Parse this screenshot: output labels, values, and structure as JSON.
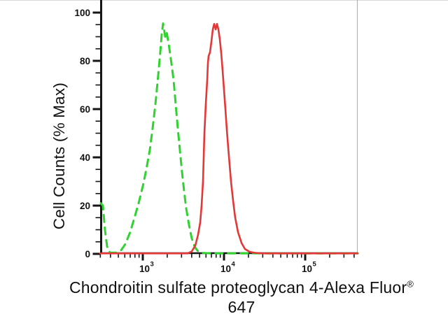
{
  "figure": {
    "kind": "flow-cytometry-histogram",
    "background_color": "#ffffff"
  },
  "chart": {
    "y_axis": {
      "label": "Cell Counts (% Max)",
      "ticks": [
        0,
        20,
        40,
        60,
        80,
        100
      ],
      "minor_step": 5,
      "range": [
        0,
        100
      ]
    },
    "x_axis": {
      "scale": "log10",
      "base_text": "10",
      "tick_exponents": [
        3,
        4,
        5
      ],
      "log_range": [
        2.474,
        5.647
      ]
    }
  },
  "caption": {
    "line1": "Chondroitin sulfate proteoglycan 4-Alexa Fluor",
    "registered_mark": "®",
    "line2": "647"
  },
  "colors": {
    "green_curve": "#2FD32F",
    "red_curve": "#E43737",
    "axis": "#151515",
    "faint_spine": "#b3b3b3"
  },
  "chart_data": {
    "type": "line",
    "title": "",
    "xlabel": "Chondroitin sulfate proteoglycan 4-Alexa Fluor® 647",
    "ylabel": "Cell Counts (% Max)",
    "x_scale": "log10",
    "xlim_log10": [
      2.474,
      5.647
    ],
    "ylim": [
      0,
      100
    ],
    "grid": false,
    "legend": "none",
    "series": [
      {
        "name": "green-dashed-control",
        "style": "dashed",
        "color": "#2FD32F",
        "peak_log10x": 3.25,
        "peak_pct": 95.5,
        "points_log10x_pct": [
          [
            2.483,
            21
          ],
          [
            2.509,
            20
          ],
          [
            2.534,
            10
          ],
          [
            2.56,
            3
          ],
          [
            2.595,
            0.5
          ],
          [
            2.672,
            0.5
          ],
          [
            2.733,
            1.5
          ],
          [
            2.784,
            4
          ],
          [
            2.845,
            9
          ],
          [
            2.897,
            15
          ],
          [
            2.948,
            21
          ],
          [
            3.0,
            28
          ],
          [
            3.043,
            35
          ],
          [
            3.086,
            43
          ],
          [
            3.121,
            52
          ],
          [
            3.155,
            62
          ],
          [
            3.19,
            74
          ],
          [
            3.216,
            84
          ],
          [
            3.233,
            91
          ],
          [
            3.25,
            95.5
          ],
          [
            3.276,
            90
          ],
          [
            3.293,
            92
          ],
          [
            3.319,
            87
          ],
          [
            3.353,
            79
          ],
          [
            3.379,
            72
          ],
          [
            3.405,
            62
          ],
          [
            3.431,
            52
          ],
          [
            3.457,
            43
          ],
          [
            3.483,
            34
          ],
          [
            3.509,
            26
          ],
          [
            3.534,
            19
          ],
          [
            3.569,
            12
          ],
          [
            3.603,
            6.5
          ],
          [
            3.638,
            3
          ],
          [
            3.681,
            1
          ],
          [
            3.741,
            0.4
          ],
          [
            3.828,
            0.2
          ],
          [
            4.345,
            0.2
          ],
          [
            4.862,
            0.2
          ],
          [
            5.647,
            0.2
          ]
        ]
      },
      {
        "name": "red-solid-sample",
        "style": "solid",
        "color": "#E43737",
        "peak_log10x": 3.879,
        "peak_pct": 95.3,
        "points_log10x_pct": [
          [
            2.474,
            0.2
          ],
          [
            3.552,
            0.2
          ],
          [
            3.603,
            1
          ],
          [
            3.647,
            3.5
          ],
          [
            3.681,
            8
          ],
          [
            3.707,
            13
          ],
          [
            3.724,
            20
          ],
          [
            3.741,
            30
          ],
          [
            3.75,
            40
          ],
          [
            3.759,
            50
          ],
          [
            3.776,
            62
          ],
          [
            3.793,
            72
          ],
          [
            3.802,
            79
          ],
          [
            3.81,
            82
          ],
          [
            3.828,
            83.5
          ],
          [
            3.845,
            88
          ],
          [
            3.862,
            93
          ],
          [
            3.879,
            95.3
          ],
          [
            3.897,
            93
          ],
          [
            3.914,
            95.3
          ],
          [
            3.931,
            93
          ],
          [
            3.948,
            89
          ],
          [
            3.966,
            83
          ],
          [
            3.983,
            76
          ],
          [
            4.0,
            68
          ],
          [
            4.017,
            60
          ],
          [
            4.034,
            52
          ],
          [
            4.052,
            44
          ],
          [
            4.069,
            37
          ],
          [
            4.086,
            30
          ],
          [
            4.112,
            22
          ],
          [
            4.138,
            15
          ],
          [
            4.172,
            9
          ],
          [
            4.216,
            4.5
          ],
          [
            4.259,
            2
          ],
          [
            4.319,
            0.8
          ],
          [
            4.388,
            0.4
          ],
          [
            4.474,
            0.2
          ],
          [
            5.647,
            0.2
          ]
        ]
      }
    ]
  }
}
